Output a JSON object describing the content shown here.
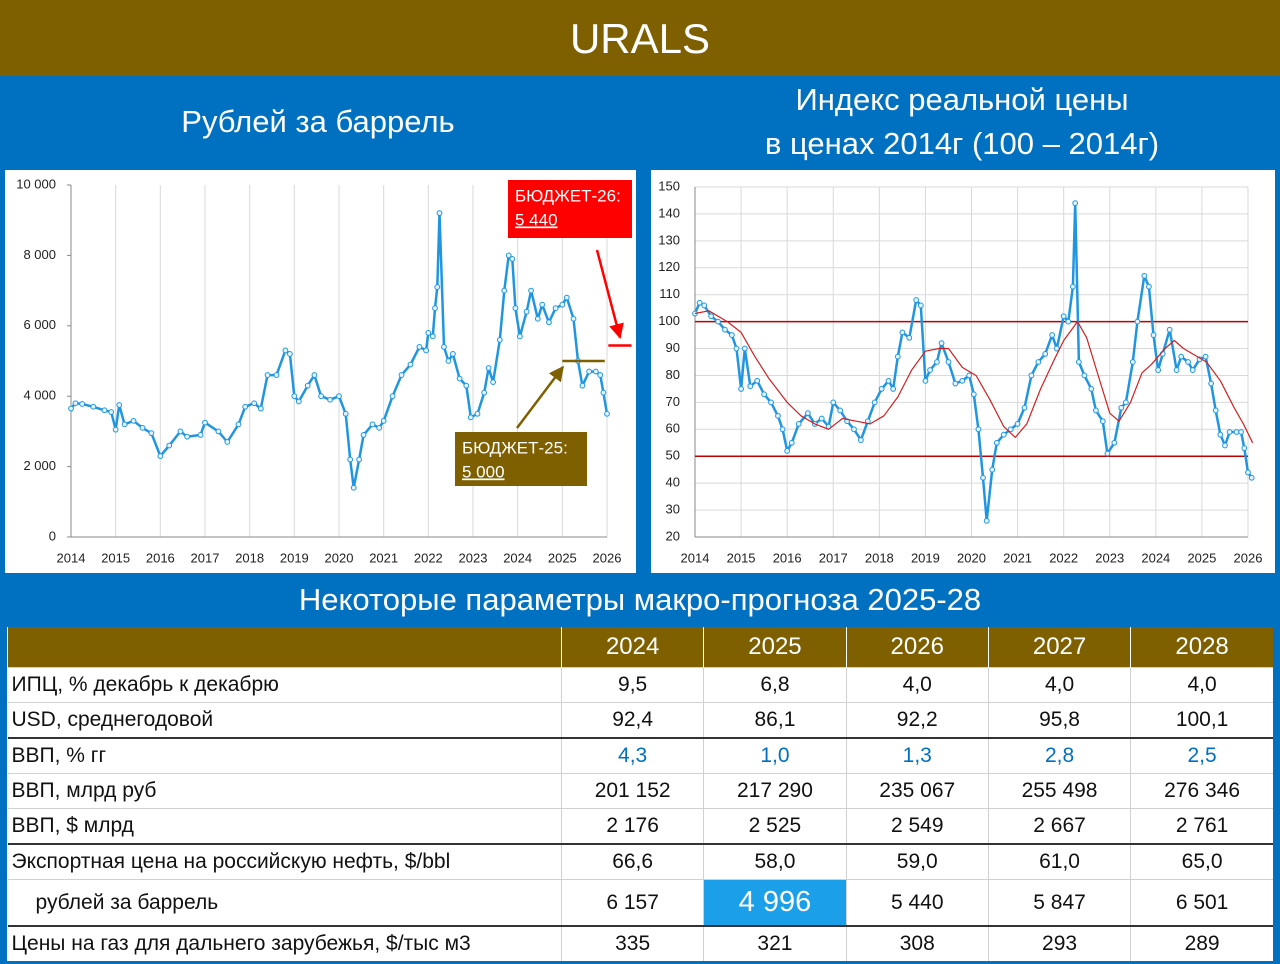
{
  "header": {
    "title": "URALS"
  },
  "chart_data": [
    {
      "type": "line",
      "title": "Рублей за баррель",
      "xlim": [
        2014,
        2026
      ],
      "xticks": [
        2014,
        2015,
        2016,
        2017,
        2018,
        2019,
        2020,
        2021,
        2022,
        2023,
        2024,
        2025,
        2026
      ],
      "ylim": [
        0,
        10000
      ],
      "yticks": [
        0,
        {
          "value": 2000,
          "label": "2 000"
        },
        {
          "value": 4000,
          "label": "4 000"
        },
        {
          "value": 6000,
          "label": "6 000"
        },
        {
          "value": 8000,
          "label": "8 000"
        },
        {
          "value": 10000,
          "label": "10 000"
        }
      ],
      "grid": [
        "x"
      ],
      "series": [
        {
          "color": "#2196e0",
          "markers": true,
          "x": [
            2014.0,
            2014.1,
            2014.25,
            2014.5,
            2014.75,
            2014.9,
            2015.0,
            2015.08,
            2015.2,
            2015.4,
            2015.6,
            2015.8,
            2016.0,
            2016.2,
            2016.45,
            2016.6,
            2016.9,
            2017.0,
            2017.3,
            2017.5,
            2017.75,
            2017.9,
            2018.1,
            2018.25,
            2018.4,
            2018.6,
            2018.8,
            2018.9,
            2019.0,
            2019.1,
            2019.3,
            2019.45,
            2019.6,
            2019.8,
            2020.0,
            2020.15,
            2020.25,
            2020.33,
            2020.45,
            2020.55,
            2020.75,
            2020.9,
            2021.0,
            2021.2,
            2021.4,
            2021.6,
            2021.8,
            2021.95,
            2022.0,
            2022.1,
            2022.15,
            2022.2,
            2022.25,
            2022.35,
            2022.45,
            2022.55,
            2022.7,
            2022.85,
            2022.95,
            2023.1,
            2023.25,
            2023.35,
            2023.45,
            2023.6,
            2023.7,
            2023.8,
            2023.88,
            2023.95,
            2024.05,
            2024.2,
            2024.3,
            2024.45,
            2024.55,
            2024.7,
            2024.85,
            2025.0,
            2025.1,
            2025.25,
            2025.35,
            2025.45,
            2025.6,
            2025.75,
            2025.85,
            2025.92,
            2026.0
          ],
          "values": [
            3650,
            3800,
            3780,
            3700,
            3600,
            3550,
            3050,
            3750,
            3200,
            3300,
            3100,
            2950,
            2300,
            2600,
            3000,
            2850,
            2900,
            3250,
            3000,
            2700,
            3200,
            3700,
            3800,
            3650,
            4600,
            4600,
            5300,
            5200,
            4000,
            3850,
            4300,
            4600,
            4000,
            3900,
            4000,
            3500,
            2200,
            1400,
            2200,
            2900,
            3200,
            3100,
            3300,
            4000,
            4600,
            4900,
            5400,
            5300,
            5800,
            5700,
            6500,
            7100,
            9200,
            5400,
            5000,
            5200,
            4500,
            4300,
            3400,
            3500,
            4100,
            4800,
            4400,
            5600,
            7000,
            8000,
            7900,
            6500,
            5700,
            6400,
            7000,
            6200,
            6600,
            6100,
            6500,
            6600,
            6800,
            6200,
            5000,
            4300,
            4700,
            4700,
            4600,
            4100,
            3500
          ]
        }
      ],
      "annotations": [
        {
          "text": "БЮДЖЕТ-26:",
          "value": 5440,
          "label": "5 440",
          "color": "#ff0000",
          "xrange": [
            2026.03,
            2026.55
          ]
        },
        {
          "text": "БЮДЖЕТ-25:",
          "value": 5000,
          "label": "5 000",
          "color": "#7f6000",
          "xrange": [
            2025.0,
            2025.95
          ]
        }
      ]
    },
    {
      "type": "line",
      "title": [
        "Индекс реальной цены",
        "в ценах 2014г (100 – 2014г)"
      ],
      "xlim": [
        2014,
        2026
      ],
      "xticks": [
        2014,
        2015,
        2016,
        2017,
        2018,
        2019,
        2020,
        2021,
        2022,
        2023,
        2024,
        2025,
        2026
      ],
      "ylim": [
        20,
        150
      ],
      "yticks": [
        20,
        30,
        40,
        50,
        60,
        70,
        80,
        90,
        100,
        110,
        120,
        130,
        140,
        150
      ],
      "grid": [
        "x",
        "y"
      ],
      "hlines": [
        100,
        50
      ],
      "hline_color": "#c00000",
      "series": [
        {
          "color": "#2196e0",
          "markers": true,
          "x": [
            2014.0,
            2014.1,
            2014.2,
            2014.35,
            2014.5,
            2014.65,
            2014.8,
            2014.9,
            2015.0,
            2015.08,
            2015.2,
            2015.35,
            2015.5,
            2015.65,
            2015.8,
            2015.9,
            2016.0,
            2016.1,
            2016.25,
            2016.45,
            2016.6,
            2016.75,
            2016.9,
            2017.0,
            2017.15,
            2017.3,
            2017.45,
            2017.6,
            2017.75,
            2017.9,
            2018.05,
            2018.2,
            2018.3,
            2018.4,
            2018.5,
            2018.65,
            2018.8,
            2018.9,
            2019.0,
            2019.1,
            2019.25,
            2019.35,
            2019.5,
            2019.65,
            2019.8,
            2019.95,
            2020.05,
            2020.15,
            2020.25,
            2020.33,
            2020.45,
            2020.55,
            2020.7,
            2020.85,
            2021.0,
            2021.15,
            2021.3,
            2021.45,
            2021.6,
            2021.75,
            2021.85,
            2022.0,
            2022.1,
            2022.2,
            2022.25,
            2022.33,
            2022.45,
            2022.6,
            2022.7,
            2022.85,
            2022.95,
            2023.1,
            2023.25,
            2023.35,
            2023.5,
            2023.6,
            2023.75,
            2023.85,
            2023.95,
            2024.05,
            2024.15,
            2024.3,
            2024.45,
            2024.55,
            2024.7,
            2024.8,
            2024.95,
            2025.08,
            2025.2,
            2025.3,
            2025.4,
            2025.5,
            2025.6,
            2025.75,
            2025.85,
            2025.92,
            2026.0,
            2026.08
          ],
          "values": [
            103,
            107,
            106,
            102,
            100,
            97,
            95,
            90,
            75,
            90,
            76,
            78,
            73,
            70,
            65,
            60,
            52,
            55,
            62,
            66,
            62,
            64,
            61,
            70,
            67,
            63,
            60,
            56,
            63,
            70,
            75,
            78,
            75,
            87,
            96,
            94,
            108,
            106,
            78,
            82,
            85,
            92,
            85,
            77,
            78,
            80,
            73,
            60,
            42,
            26,
            45,
            55,
            58,
            60,
            62,
            68,
            80,
            85,
            88,
            95,
            90,
            102,
            100,
            113,
            144,
            85,
            80,
            75,
            67,
            63,
            51,
            55,
            68,
            70,
            85,
            100,
            117,
            113,
            95,
            82,
            88,
            97,
            82,
            87,
            85,
            82,
            86,
            87,
            77,
            67,
            58,
            54,
            59,
            59,
            59,
            53,
            44,
            42
          ]
        },
        {
          "color": "#d22020",
          "markers": false,
          "x": [
            2014.0,
            2014.3,
            2014.7,
            2015.0,
            2015.3,
            2015.6,
            2016.0,
            2016.3,
            2016.6,
            2016.9,
            2017.2,
            2017.5,
            2017.8,
            2018.1,
            2018.4,
            2018.7,
            2019.0,
            2019.3,
            2019.5,
            2019.8,
            2020.1,
            2020.4,
            2020.7,
            2020.95,
            2021.2,
            2021.5,
            2021.8,
            2022.0,
            2022.3,
            2022.5,
            2022.75,
            2023.0,
            2023.2,
            2023.45,
            2023.7,
            2023.9,
            2024.2,
            2024.4,
            2024.6,
            2024.9,
            2025.1,
            2025.4,
            2025.7,
            2025.9,
            2026.1
          ],
          "values": [
            103,
            104,
            100,
            96,
            87,
            79,
            70,
            65,
            62,
            60,
            64,
            63,
            62,
            65,
            72,
            82,
            89,
            90,
            90,
            83,
            80,
            71,
            61,
            57,
            62,
            75,
            86,
            93,
            100,
            94,
            80,
            66,
            63,
            70,
            81,
            84,
            90,
            93,
            90,
            87,
            85,
            78,
            68,
            62,
            55
          ]
        }
      ]
    }
  ],
  "table": {
    "title": "Некоторые параметры макро-прогноза 2025-28",
    "columns": [
      "2024",
      "2025",
      "2026",
      "2027",
      "2028"
    ],
    "rows": [
      [
        "ИПЦ, % декабрь к декабрю",
        "9,5",
        "6,8",
        "4,0",
        "4,0",
        "4,0"
      ],
      [
        "USD, среднегодовой",
        "92,4",
        "86,1",
        "92,2",
        "95,8",
        "100,1"
      ],
      [
        "ВВП, % гг",
        "4,3",
        "1,0",
        "1,3",
        "2,8",
        "2,5"
      ],
      [
        "ВВП, млрд руб",
        "201 152",
        "217 290",
        "235 067",
        "255 498",
        "276 346"
      ],
      [
        "ВВП, $ млрд",
        "2 176",
        "2 525",
        "2 549",
        "2 667",
        "2 761"
      ],
      [
        "Экспортная цена на российскую нефть, $/bbl",
        "66,6",
        "58,0",
        "59,0",
        "61,0",
        "65,0"
      ],
      [
        "рублей за баррель",
        "6 157",
        "4 996",
        "5 440",
        "5 847",
        "6 501"
      ],
      [
        "Цены на газ для дальнего зарубежья, $/тыс м3",
        "335",
        "321",
        "308",
        "293",
        "289"
      ]
    ]
  }
}
